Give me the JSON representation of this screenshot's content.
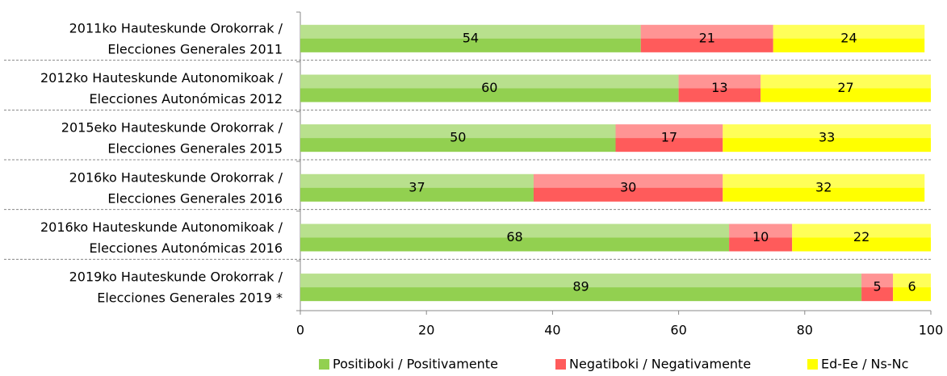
{
  "chart_data": {
    "type": "stacked_bar_horizontal",
    "categories": [
      [
        "2011ko Hauteskunde Orokorrak /",
        "Elecciones Generales 2011"
      ],
      [
        "2012ko Hauteskunde Autonomikoak /",
        "Elecciones Autonómicas 2012"
      ],
      [
        "2015eko Hauteskunde Orokorrak /",
        "Elecciones Generales 2015"
      ],
      [
        "2016ko Hauteskunde Orokorrak /",
        "Elecciones Generales 2016"
      ],
      [
        "2016ko Hauteskunde Autonomikoak /",
        "Elecciones Autonómicas 2016"
      ],
      [
        "2019ko Hauteskunde Orokorrak /",
        "Elecciones Generales 2019 *"
      ]
    ],
    "series": [
      {
        "name": "Positiboki / Positivamente",
        "color": "#92d050",
        "values": [
          54,
          60,
          50,
          37,
          68,
          89
        ]
      },
      {
        "name": "Negatiboki / Negativamente",
        "color": "#ff5b5b",
        "values": [
          21,
          13,
          17,
          30,
          10,
          5
        ]
      },
      {
        "name": "Ed-Ee / Ns-Nc",
        "color": "#ffff00",
        "values": [
          24,
          27,
          33,
          32,
          22,
          6
        ]
      }
    ],
    "xlim": [
      0,
      100
    ],
    "xticks": [
      0,
      20,
      40,
      60,
      80,
      100
    ],
    "legend": "bottom"
  }
}
